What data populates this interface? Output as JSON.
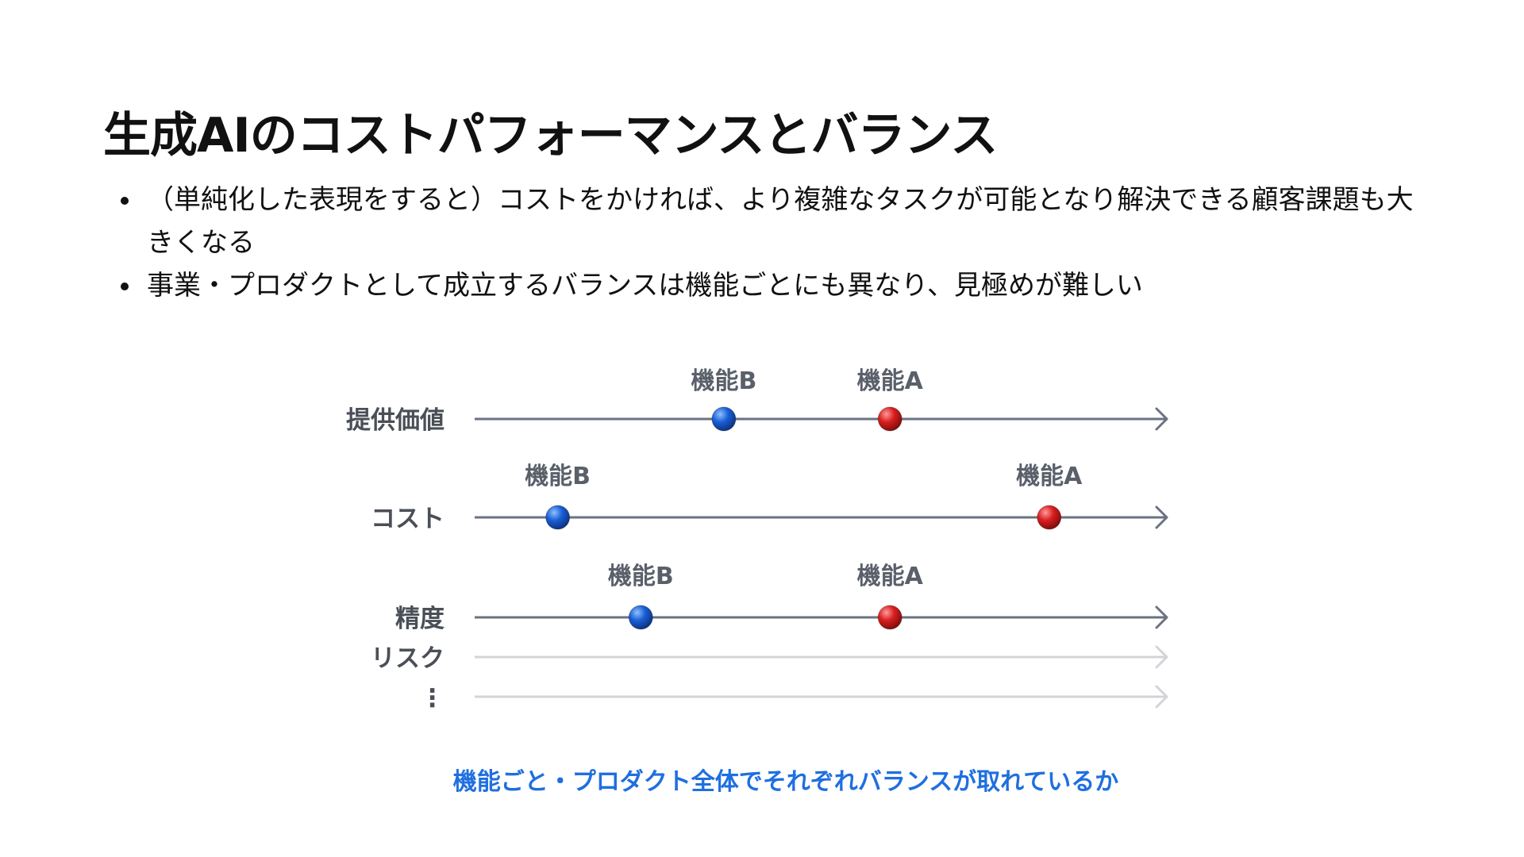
{
  "slide": {
    "title": "生成AIのコストパフォーマンスとバランス",
    "bullets": [
      "（単純化した表現をすると）コストをかければ、より複雑なタスクが可能となり解決できる顧客課題も大きくなる",
      "事業・プロダクトとして成立するバランスは機能ごとにも異なり、見極めが難しい"
    ],
    "caption": "機能ごと・プロダクト全体でそれぞれバランスが取れているか"
  },
  "diagram": {
    "axes": [
      {
        "label": "提供価値",
        "active": true,
        "points": [
          {
            "label": "機能B",
            "position": 0.36,
            "color": "#1a5fd6"
          },
          {
            "label": "機能A",
            "position": 0.6,
            "color": "#d81e1e"
          }
        ]
      },
      {
        "label": "コスト",
        "active": true,
        "points": [
          {
            "label": "機能B",
            "position": 0.12,
            "color": "#1a5fd6"
          },
          {
            "label": "機能A",
            "position": 0.83,
            "color": "#d81e1e"
          }
        ]
      },
      {
        "label": "精度",
        "active": true,
        "points": [
          {
            "label": "機能B",
            "position": 0.24,
            "color": "#1a5fd6"
          },
          {
            "label": "機能A",
            "position": 0.6,
            "color": "#d81e1e"
          }
        ]
      },
      {
        "label": "リスク",
        "active": false,
        "points": []
      },
      {
        "label": "⋮",
        "active": false,
        "points": []
      }
    ],
    "colors": {
      "active_axis": "#6b7280",
      "inactive_axis": "#d4d4d8"
    }
  }
}
